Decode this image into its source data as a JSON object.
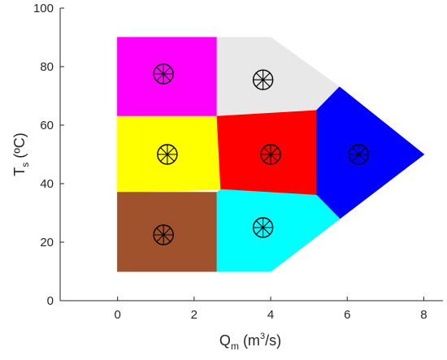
{
  "chart_data": {
    "type": "scatter",
    "title": "",
    "xlabel": {
      "main": "Q",
      "sub": "m",
      "unit_prefix": " (m",
      "unit_sup": "3",
      "unit_suffix": "/s)"
    },
    "ylabel": {
      "main": "T",
      "sub": "s",
      "unit": " (ºC)"
    },
    "xlim": [
      -1.5,
      8.5
    ],
    "ylim": [
      0,
      100
    ],
    "xticks": [
      0,
      2,
      4,
      6,
      8
    ],
    "yticks": [
      0,
      20,
      40,
      60,
      80,
      100
    ],
    "grid": false,
    "regions": [
      {
        "color": "#ff00ff",
        "polygon": [
          [
            0,
            90
          ],
          [
            2.6,
            90
          ],
          [
            2.6,
            63
          ],
          [
            0,
            63
          ]
        ]
      },
      {
        "color": "#e8e8e8",
        "polygon": [
          [
            2.6,
            90
          ],
          [
            4.0,
            90
          ],
          [
            5.8,
            73
          ],
          [
            5.2,
            65
          ],
          [
            2.6,
            63
          ]
        ]
      },
      {
        "color": "#ffff00",
        "polygon": [
          [
            0,
            63
          ],
          [
            2.6,
            63
          ],
          [
            2.7,
            38
          ],
          [
            0,
            37
          ]
        ]
      },
      {
        "color": "#ff0000",
        "polygon": [
          [
            2.6,
            63
          ],
          [
            5.2,
            65
          ],
          [
            5.2,
            36
          ],
          [
            2.7,
            38
          ]
        ]
      },
      {
        "color": "#0000ff",
        "polygon": [
          [
            5.2,
            65
          ],
          [
            5.8,
            73
          ],
          [
            8.0,
            50
          ],
          [
            5.8,
            28
          ],
          [
            5.2,
            36
          ]
        ]
      },
      {
        "color": "#a0522d",
        "polygon": [
          [
            0,
            37
          ],
          [
            2.6,
            37
          ],
          [
            2.6,
            10
          ],
          [
            0,
            10
          ]
        ]
      },
      {
        "color": "#00ffff",
        "polygon": [
          [
            2.6,
            37
          ],
          [
            2.7,
            38
          ],
          [
            5.2,
            36
          ],
          [
            5.8,
            28
          ],
          [
            4.0,
            10
          ],
          [
            2.6,
            10
          ]
        ]
      }
    ],
    "centroids": [
      {
        "x": 1.2,
        "y": 77.5
      },
      {
        "x": 3.8,
        "y": 75.5
      },
      {
        "x": 1.3,
        "y": 50
      },
      {
        "x": 4.0,
        "y": 50
      },
      {
        "x": 6.3,
        "y": 50
      },
      {
        "x": 1.2,
        "y": 22.5
      },
      {
        "x": 3.8,
        "y": 25
      }
    ]
  }
}
